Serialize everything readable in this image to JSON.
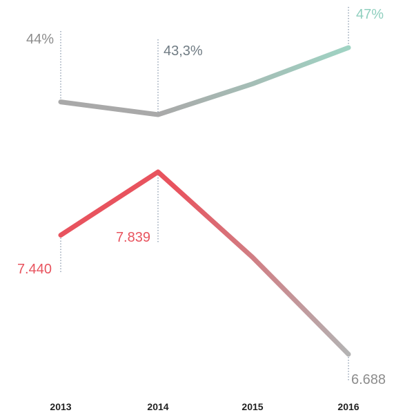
{
  "chart_data": {
    "type": "line",
    "x": [
      "2013",
      "2014",
      "2015",
      "2016"
    ],
    "series": [
      {
        "values": [
          44.0,
          43.3,
          45.0,
          47.0
        ],
        "labels": [
          "44%",
          "43,3%",
          "",
          "47%"
        ],
        "color_start": "#a9a9a9",
        "color_end": "#9fd3c3"
      },
      {
        "values": [
          7440,
          7839,
          7300,
          6688
        ],
        "labels": [
          "7.440",
          "7.839",
          "",
          "6.688"
        ],
        "color_start": "#e8535e",
        "color_end": "#b3b3b3"
      }
    ],
    "grid": false,
    "legend": "none"
  },
  "colors": {
    "label_grey": "#8c8c8c",
    "label_dark_grey": "#6f7b83",
    "label_teal": "#8fcfbe",
    "label_red": "#e8535e",
    "label_end_grey": "#8c8c8c"
  }
}
